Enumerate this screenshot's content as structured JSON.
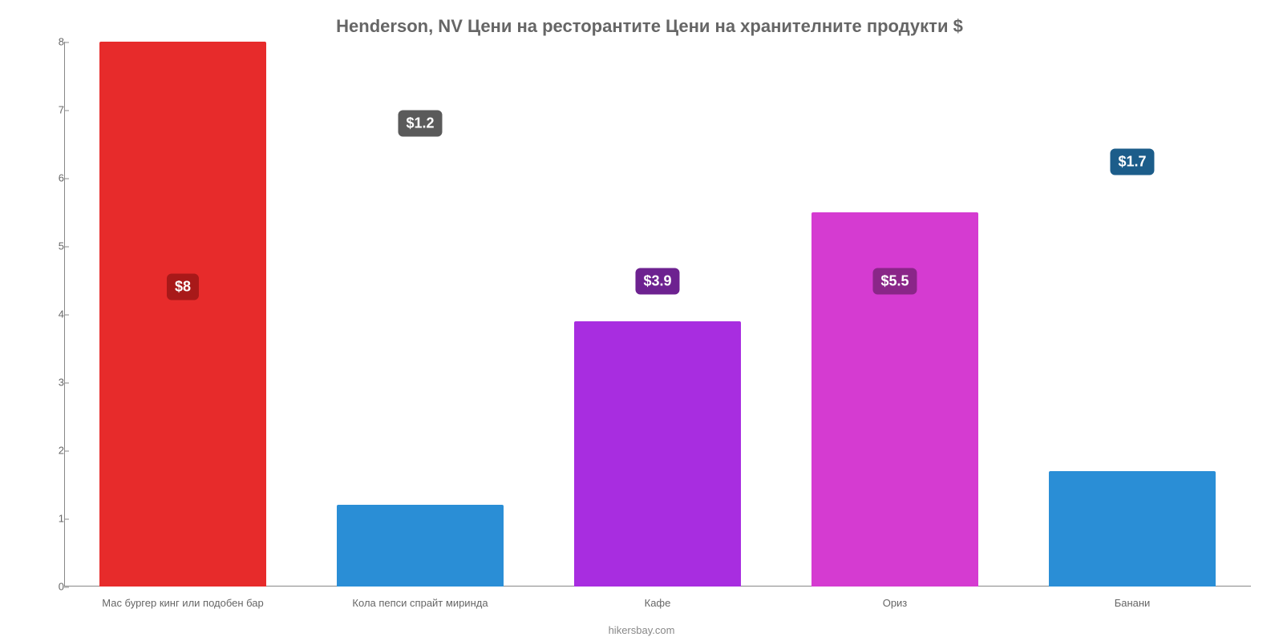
{
  "chart": {
    "type": "bar",
    "title": "Henderson, NV Цени на ресторантите Цени на хранителните продукти $",
    "title_fontsize": 22,
    "title_color": "#666666",
    "attribution": "hikersbay.com",
    "attribution_fontsize": 13,
    "attribution_color": "#888888",
    "background_color": "#ffffff",
    "axis_color": "#888888",
    "ylim": [
      0,
      8
    ],
    "yticks": [
      0,
      1,
      2,
      3,
      4,
      5,
      6,
      7,
      8
    ],
    "ytick_fontsize": 13,
    "ytick_color": "#666666",
    "xlabel_fontsize": 13,
    "xlabel_color": "#666666",
    "bar_width_ratio": 0.7,
    "badge_fontsize": 18,
    "bars": [
      {
        "category": "Мас бургер кинг или подобен бар",
        "value": 8,
        "label": "$8",
        "bar_color": "#e72b2b",
        "badge_color": "#a81919",
        "badge_pos": 0.55
      },
      {
        "category": "Кола пепси спрайт миринда",
        "value": 1.2,
        "label": "$1.2",
        "bar_color": "#2a8ed6",
        "badge_color": "#5a5a5a",
        "badge_pos": 0.85
      },
      {
        "category": "Кафе",
        "value": 3.9,
        "label": "$3.9",
        "bar_color": "#a82de0",
        "badge_color": "#6d2290",
        "badge_pos": 0.56
      },
      {
        "category": "Ориз",
        "value": 5.5,
        "label": "$5.5",
        "bar_color": "#d53bd1",
        "badge_color": "#8a2688",
        "badge_pos": 0.56
      },
      {
        "category": "Банани",
        "value": 1.7,
        "label": "$1.7",
        "bar_color": "#2a8ed6",
        "badge_color": "#1c5d8a",
        "badge_pos": 0.78
      }
    ]
  }
}
